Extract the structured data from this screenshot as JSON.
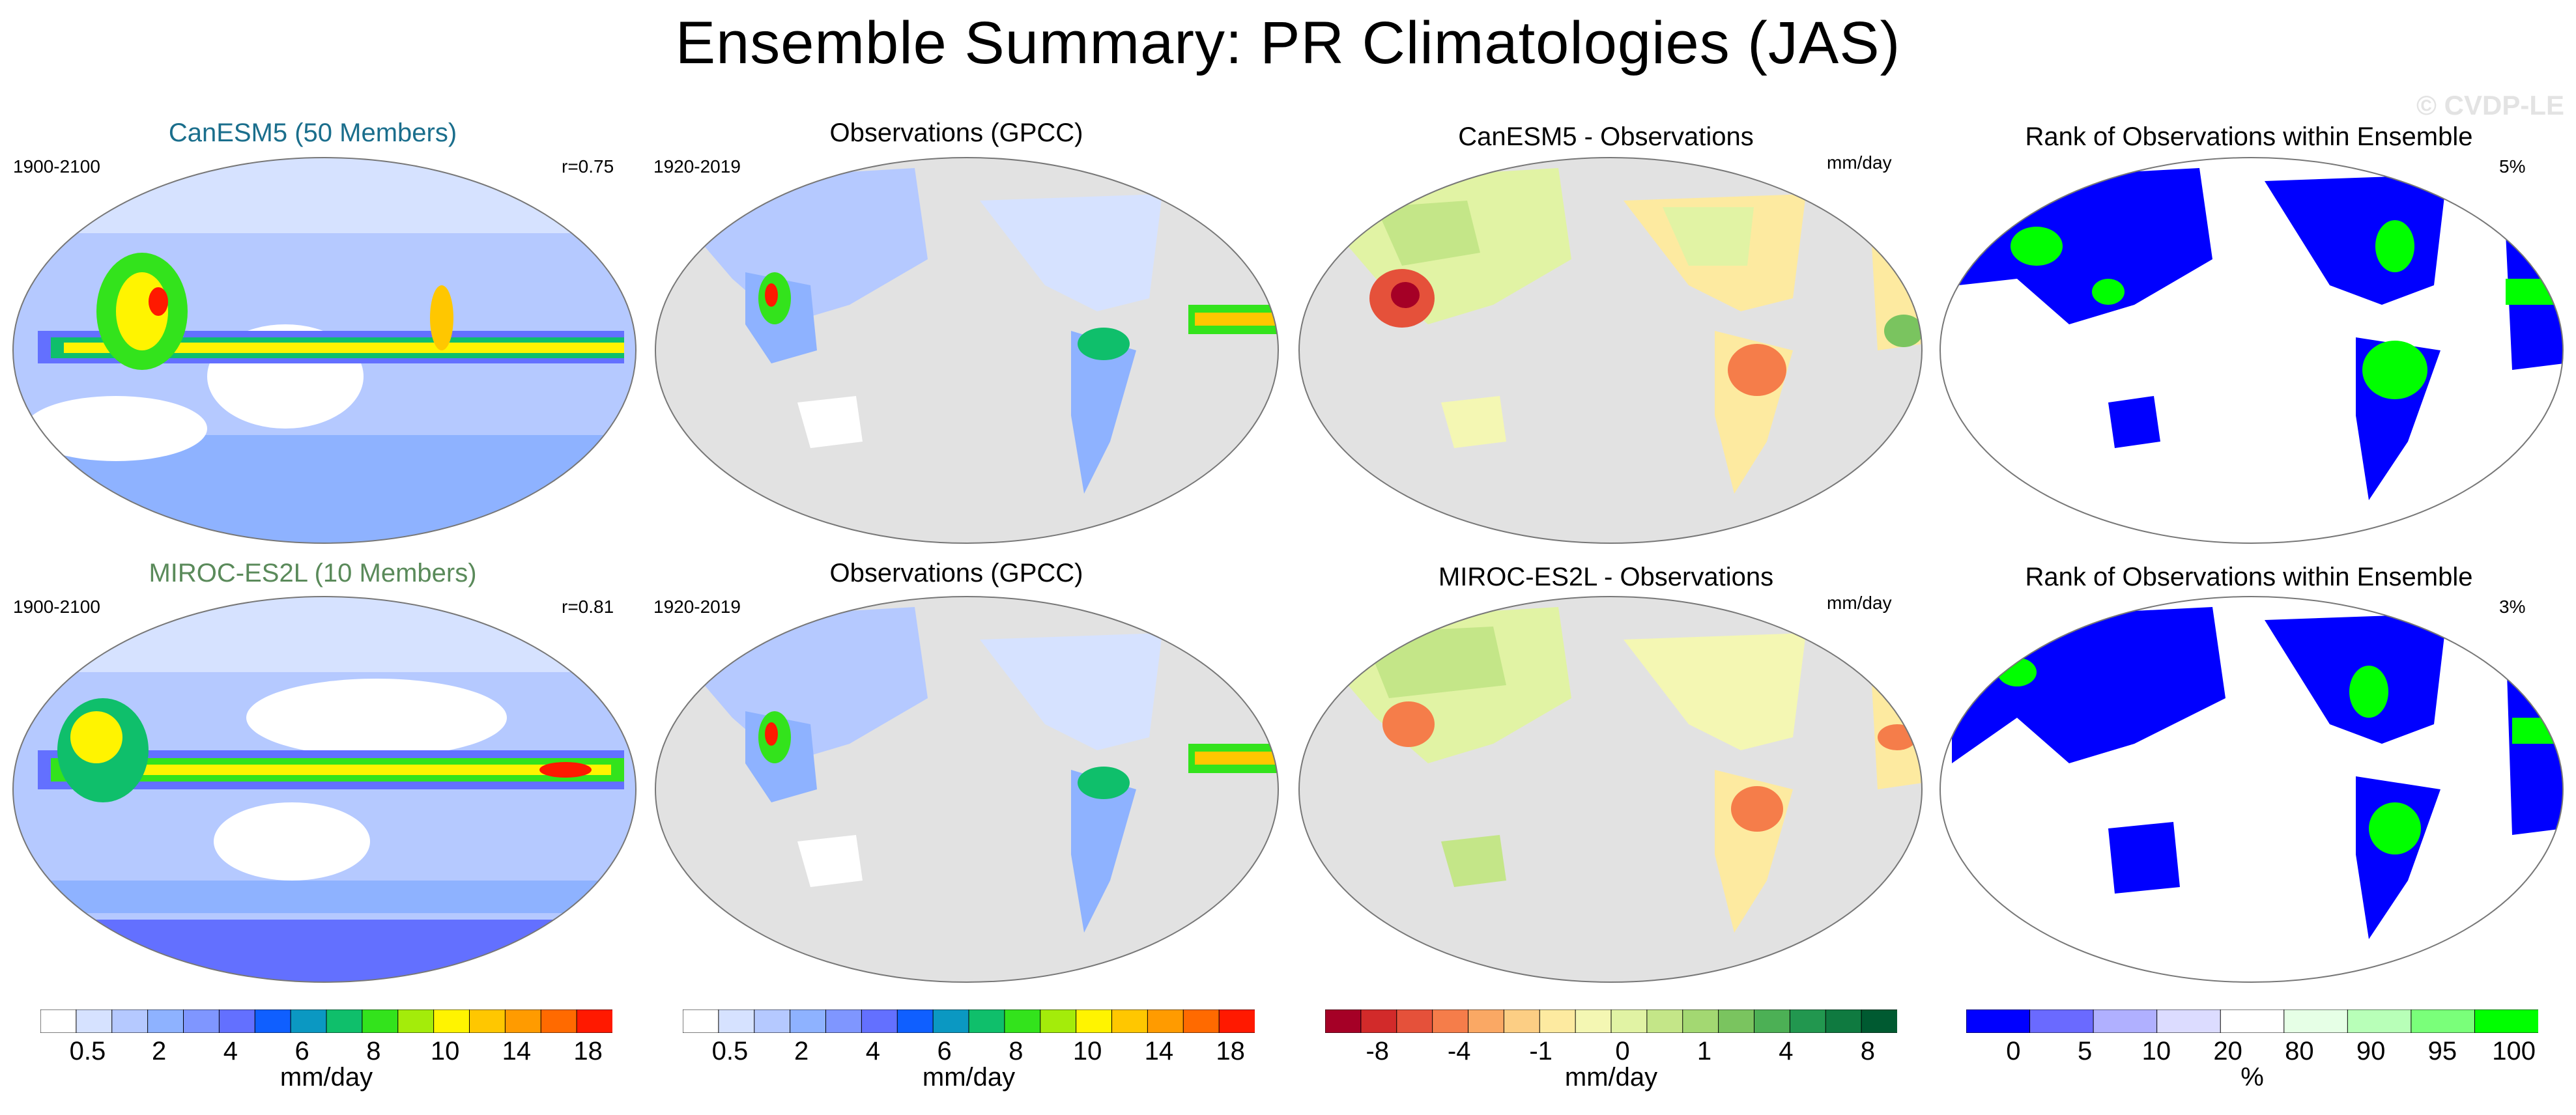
{
  "title": "Ensemble Summary: PR Climatologies (JAS)",
  "watermark": "© CVDP-LE",
  "colors": {
    "canesm_title": "#1a6e8c",
    "miroc_title": "#5a8a5a",
    "land_gray": "#e2e2e2",
    "ocean_rank_blue": "#0000ff",
    "rank_green": "#00ff00"
  },
  "rows": [
    {
      "panels": [
        {
          "title": "CanESM5 (50 Members)",
          "left_label": "1900-2100",
          "right_label": "r=0.75",
          "type": "model"
        },
        {
          "title": "Observations (GPCC)",
          "left_label": "1920-2019",
          "right_label": "",
          "type": "obs"
        },
        {
          "title": "CanESM5 - Observations",
          "left_label": "",
          "right_label": "mm/day",
          "type": "diff"
        },
        {
          "title": "Rank of Observations within Ensemble",
          "left_label": "",
          "right_label": "5%",
          "type": "rank"
        }
      ]
    },
    {
      "panels": [
        {
          "title": "MIROC-ES2L (10 Members)",
          "left_label": "1900-2100",
          "right_label": "r=0.81",
          "type": "model"
        },
        {
          "title": "Observations (GPCC)",
          "left_label": "1920-2019",
          "right_label": "",
          "type": "obs"
        },
        {
          "title": "MIROC-ES2L - Observations",
          "left_label": "",
          "right_label": "mm/day",
          "type": "diff"
        },
        {
          "title": "Rank of Observations within Ensemble",
          "left_label": "",
          "right_label": "3%",
          "type": "rank"
        }
      ]
    }
  ],
  "colorbars": [
    {
      "label": "mm/day",
      "colors": [
        "#ffffff",
        "#d6e2ff",
        "#b5c9ff",
        "#8eb2ff",
        "#7f96ff",
        "#6370ff",
        "#0f5fff",
        "#0b98c2",
        "#0fbf6b",
        "#33e31c",
        "#a4ec0a",
        "#fff400",
        "#ffc700",
        "#ff9b00",
        "#ff6a00",
        "#ff1900"
      ],
      "ticks": [
        "0.5",
        "2",
        "4",
        "6",
        "8",
        "10",
        "14",
        "18"
      ]
    },
    {
      "label": "mm/day",
      "colors": [
        "#ffffff",
        "#d6e2ff",
        "#b5c9ff",
        "#8eb2ff",
        "#7f96ff",
        "#6370ff",
        "#0f5fff",
        "#0b98c2",
        "#0fbf6b",
        "#33e31c",
        "#a4ec0a",
        "#fff400",
        "#ffc700",
        "#ff9b00",
        "#ff6a00",
        "#ff1900"
      ],
      "ticks": [
        "0.5",
        "2",
        "4",
        "6",
        "8",
        "10",
        "14",
        "18"
      ]
    },
    {
      "label": "mm/day",
      "colors": [
        "#a50026",
        "#d22a2a",
        "#e5513a",
        "#f57d4a",
        "#faa864",
        "#fcce84",
        "#fdeaa0",
        "#f4f7b3",
        "#e1f3a4",
        "#c4e688",
        "#a3d872",
        "#7ac45f",
        "#4cb055",
        "#22974f",
        "#0f7a40",
        "#005a31"
      ],
      "ticks": [
        "-8",
        "-4",
        "-1",
        "0",
        "1",
        "4",
        "8"
      ]
    },
    {
      "label": "%",
      "colors": [
        "#0000ff",
        "#6a6aff",
        "#b0b0ff",
        "#dcdcff",
        "#ffffff",
        "#e6ffe6",
        "#b8ffb8",
        "#7aff7a",
        "#00ff00"
      ],
      "ticks": [
        "0",
        "5",
        "10",
        "20",
        "80",
        "90",
        "95",
        "100"
      ]
    }
  ]
}
